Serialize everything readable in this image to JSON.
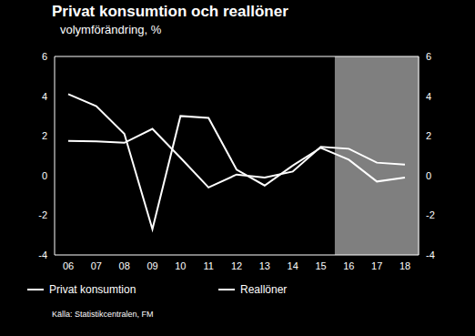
{
  "chart_data": {
    "type": "line",
    "title": "Privat konsumtion och reallöner",
    "subtitle": "volymförändring, %",
    "source": "Källa: Statistikcentralen, FM",
    "categories": [
      "06",
      "07",
      "08",
      "09",
      "10",
      "11",
      "12",
      "13",
      "14",
      "15",
      "16",
      "17",
      "18"
    ],
    "series": [
      {
        "name": "Privat konsumtion",
        "color": "#ffffff",
        "values": [
          4.1,
          3.5,
          2.1,
          -2.7,
          3.0,
          2.9,
          0.3,
          -0.5,
          0.5,
          1.4,
          0.8,
          -0.3,
          -0.1
        ]
      },
      {
        "name": "Reallöner",
        "color": "#ffffff",
        "axis": "y2",
        "values": [
          1.75,
          1.72,
          1.65,
          2.35,
          0.9,
          -0.6,
          0.05,
          -0.1,
          0.2,
          1.45,
          1.35,
          0.65,
          0.55
        ]
      }
    ],
    "ylim": [
      -4,
      6
    ],
    "yticks": [
      -4,
      -2,
      0,
      2,
      4,
      6
    ],
    "y2lim": [
      -4,
      6
    ],
    "y2ticks": [
      -4,
      -2,
      0,
      2,
      4,
      6
    ],
    "shaded_from": "16",
    "grid": false
  }
}
